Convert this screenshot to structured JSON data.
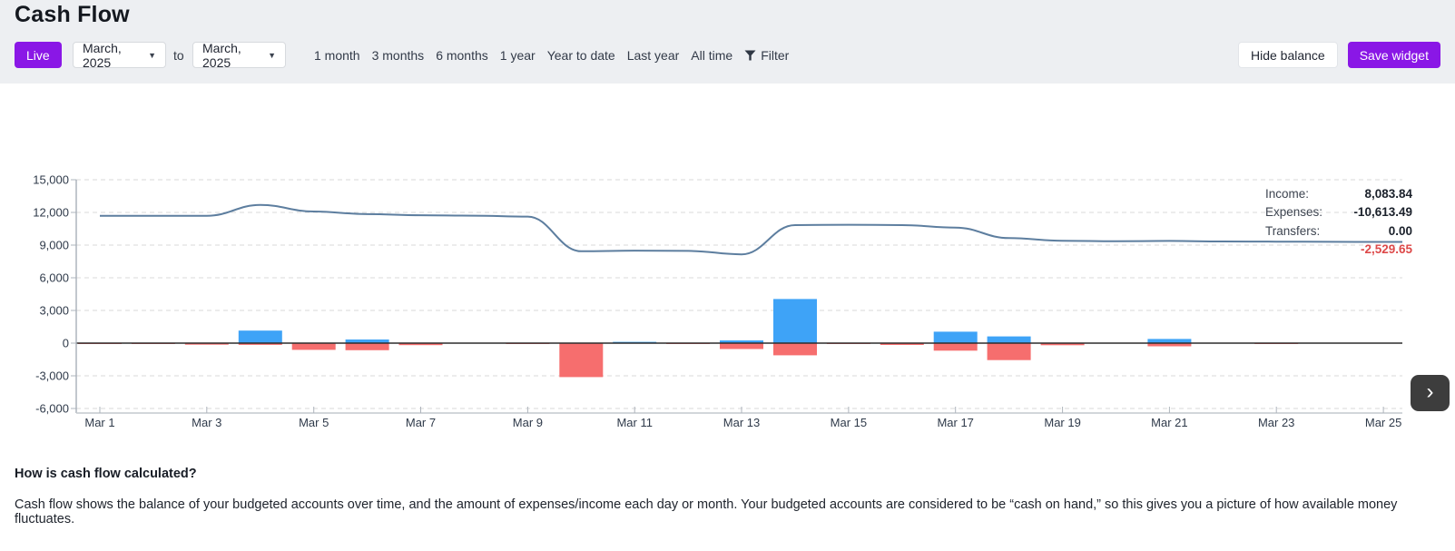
{
  "page": {
    "title": "Cash Flow"
  },
  "toolbar": {
    "live_label": "Live",
    "from_month": "March, 2025",
    "to_label": "to",
    "to_month": "March, 2025",
    "ranges": [
      "1 month",
      "3 months",
      "6 months",
      "1 year",
      "Year to date",
      "Last year",
      "All time"
    ],
    "filter_label": "Filter",
    "hide_balance_label": "Hide balance",
    "save_widget_label": "Save widget"
  },
  "summary": {
    "income_label": "Income:",
    "income_value": "8,083.84",
    "expenses_label": "Expenses:",
    "expenses_value": "-10,613.49",
    "transfers_label": "Transfers:",
    "transfers_value": "0.00",
    "net_value": "-2,529.65"
  },
  "scroll_right_icon": "›",
  "chart_data": {
    "type": "mixed-bar-line",
    "title": "Cash Flow — March 2025",
    "x_unit": "day of March 2025",
    "days": [
      1,
      2,
      3,
      4,
      5,
      6,
      7,
      8,
      9,
      10,
      11,
      12,
      13,
      14,
      15,
      16,
      17,
      18,
      19,
      20,
      21,
      22,
      23,
      24,
      25
    ],
    "x_tick_labels": [
      "Mar 1",
      "Mar 3",
      "Mar 5",
      "Mar 7",
      "Mar 9",
      "Mar 11",
      "Mar 13",
      "Mar 15",
      "Mar 17",
      "Mar 19",
      "Mar 21",
      "Mar 23",
      "Mar 25"
    ],
    "x_tick_days": [
      1,
      3,
      5,
      7,
      9,
      11,
      13,
      15,
      17,
      19,
      21,
      23,
      25
    ],
    "y_ticks": [
      15000,
      12000,
      9000,
      6000,
      3000,
      0,
      -3000,
      -6000
    ],
    "y_tick_labels": [
      "15,000",
      "12,000",
      "9,000",
      "6,000",
      "3,000",
      "0",
      "-3,000",
      "-6,000"
    ],
    "ylim": [
      -6000,
      15000
    ],
    "grid": "horizontal-dashed",
    "legend": "none",
    "series": [
      {
        "name": "Balance",
        "type": "line",
        "color": "#5d7e9f",
        "values": [
          11690,
          11690,
          11690,
          12680,
          12080,
          11840,
          11740,
          11700,
          11620,
          8430,
          8490,
          8470,
          8150,
          10830,
          10870,
          10830,
          10610,
          9640,
          9400,
          9350,
          9380,
          9330,
          9320,
          9300,
          9290
        ]
      },
      {
        "name": "Income",
        "type": "bar",
        "color": "#3ea3f7",
        "values": [
          0,
          0,
          0,
          1150,
          0,
          330,
          0,
          0,
          0,
          0,
          120,
          0,
          250,
          4050,
          0,
          0,
          1050,
          620,
          0,
          0,
          380,
          0,
          0,
          0,
          0
        ]
      },
      {
        "name": "Expenses",
        "type": "bar",
        "color": "#f66e6e",
        "values": [
          -30,
          -40,
          -140,
          -160,
          -620,
          -650,
          -180,
          0,
          -40,
          -3120,
          0,
          -50,
          -540,
          -1120,
          -30,
          -170,
          -690,
          -1560,
          -190,
          0,
          -290,
          0,
          -60,
          0,
          0
        ]
      }
    ]
  },
  "footer": {
    "heading": "How is cash flow calculated?",
    "body": "Cash flow shows the balance of your budgeted accounts over time, and the amount of expenses/income each day or month. Your budgeted accounts are considered to be “cash on hand,” so this gives you a picture of how available money fluctuates."
  },
  "colors": {
    "accent_purple": "#8a17e6",
    "income_blue": "#3ea3f7",
    "expense_red": "#f66e6e",
    "balance_line": "#5d7e9f",
    "net_negative_red": "#dd4a4a",
    "header_band": "#edeff2"
  }
}
